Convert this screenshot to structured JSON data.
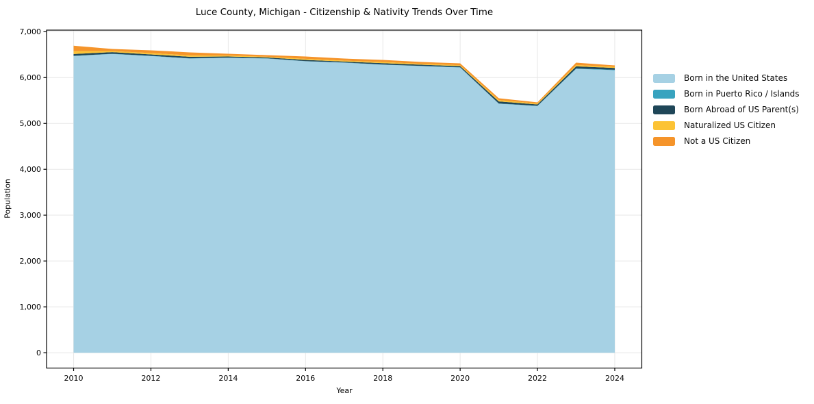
{
  "chart_data": {
    "type": "area",
    "stacked": true,
    "title": "Luce County, Michigan - Citizenship & Nativity Trends Over Time",
    "xlabel": "Year",
    "ylabel": "Population",
    "x": [
      2010,
      2011,
      2012,
      2013,
      2014,
      2015,
      2016,
      2017,
      2018,
      2019,
      2020,
      2021,
      2022,
      2023,
      2024
    ],
    "series": [
      {
        "name": "Born in the United States",
        "color": "#a6d1e4",
        "values": [
          6470,
          6515,
          6470,
          6415,
          6430,
          6415,
          6355,
          6325,
          6280,
          6250,
          6220,
          5430,
          5380,
          6190,
          6160
        ]
      },
      {
        "name": "Born in Puerto Rico / Islands",
        "color": "#38a3bf",
        "values": [
          5,
          5,
          5,
          5,
          5,
          5,
          5,
          5,
          5,
          5,
          5,
          5,
          5,
          10,
          10
        ]
      },
      {
        "name": "Born Abroad of US Parent(s)",
        "color": "#1f4658",
        "values": [
          40,
          35,
          30,
          35,
          25,
          20,
          25,
          20,
          30,
          25,
          25,
          45,
          30,
          45,
          40
        ]
      },
      {
        "name": "Naturalized US Citizen",
        "color": "#fcc335",
        "values": [
          60,
          25,
          30,
          30,
          20,
          15,
          25,
          20,
          25,
          20,
          20,
          30,
          20,
          30,
          25
        ]
      },
      {
        "name": "Not a US Citizen",
        "color": "#f5942a",
        "values": [
          120,
          45,
          60,
          65,
          40,
          35,
          50,
          45,
          45,
          40,
          40,
          40,
          25,
          50,
          30
        ]
      }
    ],
    "xticks": [
      2010,
      2012,
      2014,
      2016,
      2018,
      2020,
      2022,
      2024
    ],
    "xtick_labels": [
      "2010",
      "2012",
      "2014",
      "2016",
      "2018",
      "2020",
      "2022",
      "2024"
    ],
    "yticks": [
      0,
      1000,
      2000,
      3000,
      4000,
      5000,
      6000,
      7000
    ],
    "ytick_labels": [
      "0",
      "1,000",
      "2,000",
      "3,000",
      "4,000",
      "5,000",
      "6,000",
      "7,000"
    ],
    "xlim": [
      2009.3,
      2024.7
    ],
    "ylim": [
      -335,
      7035
    ],
    "grid": true,
    "grid_color": "#e7e7e7",
    "spine_color": "#000000",
    "legend_position": "right"
  }
}
